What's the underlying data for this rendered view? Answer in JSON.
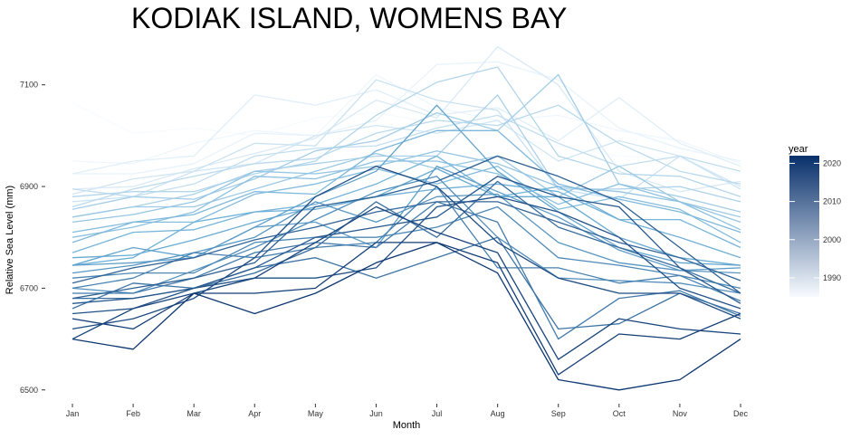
{
  "chart_data": {
    "type": "line",
    "title": "KODIAK ISLAND,  WOMENS BAY",
    "xlabel": "Month",
    "ylabel": "Relative Sea Level (mm)",
    "categories": [
      "Jan",
      "Feb",
      "Mar",
      "Apr",
      "May",
      "Jun",
      "Jul",
      "Aug",
      "Sep",
      "Oct",
      "Nov",
      "Dec"
    ],
    "ylim": [
      6480,
      7160
    ],
    "yticks": [
      6500,
      6700,
      6900,
      7100
    ],
    "grid": false,
    "legend": {
      "title": "year",
      "position": "right",
      "range": [
        1985,
        2022
      ],
      "ticks": [
        1990,
        2000,
        2010,
        2020
      ],
      "color_low": "#f7fbff",
      "color_high": "#08306b"
    },
    "series": [
      {
        "year": 1985,
        "values": [
          7065,
          7005,
          7015,
          7000,
          7035,
          7045,
          7025,
          7000,
          6980,
          6960,
          6955,
          6925
        ]
      },
      {
        "year": 1986,
        "values": [
          6950,
          6945,
          6985,
          7010,
          7000,
          7120,
          7055,
          7030,
          7040,
          7010,
          6990,
          6945
        ]
      },
      {
        "year": 1987,
        "values": [
          6925,
          6925,
          6945,
          7005,
          7000,
          7030,
          7140,
          7145,
          7110,
          7015,
          6975,
          6950
        ]
      },
      {
        "year": 1988,
        "values": [
          6925,
          6950,
          6960,
          7080,
          7060,
          7090,
          7040,
          7055,
          6990,
          7075,
          6985,
          6940
        ]
      },
      {
        "year": 1989,
        "values": [
          6895,
          6900,
          6935,
          6965,
          6995,
          7070,
          7035,
          7175,
          7100,
          6930,
          6890,
          6910
        ]
      },
      {
        "year": 1990,
        "values": [
          6885,
          6915,
          6930,
          6945,
          7000,
          7020,
          7005,
          7030,
          6950,
          6990,
          6960,
          6900
        ]
      },
      {
        "year": 1991,
        "values": [
          6870,
          6880,
          6930,
          6985,
          6980,
          7110,
          7070,
          7050,
          6895,
          6875,
          6960,
          6895
        ]
      },
      {
        "year": 1992,
        "values": [
          6895,
          6880,
          6905,
          6960,
          6975,
          6980,
          7015,
          7040,
          6985,
          6940,
          6960,
          6930
        ]
      },
      {
        "year": 1993,
        "values": [
          6860,
          6895,
          6920,
          6945,
          6955,
          7005,
          7030,
          7020,
          7060,
          6985,
          6930,
          6905
        ]
      },
      {
        "year": 1994,
        "values": [
          6880,
          6890,
          6890,
          6925,
          6950,
          7040,
          7105,
          7135,
          6960,
          6925,
          6920,
          6880
        ]
      },
      {
        "year": 1995,
        "values": [
          6840,
          6860,
          6885,
          6930,
          6945,
          6960,
          6960,
          7080,
          6895,
          6895,
          6900,
          6870
        ]
      },
      {
        "year": 1996,
        "values": [
          6855,
          6880,
          6875,
          6915,
          6970,
          6990,
          7045,
          7010,
          7120,
          6905,
          6880,
          6850
        ]
      },
      {
        "year": 1997,
        "values": [
          6840,
          6860,
          6860,
          6895,
          6930,
          6965,
          6935,
          6960,
          6880,
          6940,
          6870,
          6840
        ]
      },
      {
        "year": 1998,
        "values": [
          6830,
          6845,
          6870,
          6930,
          6925,
          6940,
          6970,
          6945,
          6900,
          6890,
          6870,
          6830
        ]
      },
      {
        "year": 1999,
        "values": [
          6800,
          6820,
          6850,
          6920,
          6915,
          6950,
          6950,
          6925,
          6865,
          6905,
          6870,
          6815
        ]
      },
      {
        "year": 2000,
        "values": [
          6810,
          6830,
          6830,
          6885,
          6905,
          6935,
          6905,
          6940,
          6855,
          6880,
          6855,
          6790
        ]
      },
      {
        "year": 2001,
        "values": [
          6790,
          6830,
          6845,
          6890,
          6885,
          6970,
          7010,
          7010,
          6905,
          6875,
          6850,
          6810
        ]
      },
      {
        "year": 2002,
        "values": [
          6770,
          6810,
          6815,
          6850,
          6865,
          6905,
          6960,
          6880,
          6900,
          6835,
          6835,
          6780
        ]
      },
      {
        "year": 2003,
        "values": [
          6745,
          6760,
          6830,
          6850,
          6855,
          6880,
          6895,
          6905,
          6890,
          6835,
          6800,
          6760
        ]
      },
      {
        "year": 2004,
        "values": [
          6760,
          6765,
          6795,
          6830,
          6860,
          6880,
          6935,
          6880,
          6880,
          6800,
          6760,
          6745
        ]
      },
      {
        "year": 2005,
        "values": [
          6745,
          6780,
          6760,
          6820,
          6880,
          6930,
          7060,
          6930,
          6850,
          6780,
          6750,
          6745
        ]
      },
      {
        "year": 2006,
        "values": [
          6745,
          6750,
          6760,
          6820,
          6830,
          6780,
          6940,
          6890,
          6840,
          6775,
          6735,
          6740
        ]
      },
      {
        "year": 2007,
        "values": [
          6730,
          6745,
          6770,
          6800,
          6870,
          6830,
          6880,
          6885,
          6790,
          6750,
          6735,
          6730
        ]
      },
      {
        "year": 2008,
        "values": [
          6700,
          6690,
          6735,
          6780,
          6835,
          6890,
          6920,
          6800,
          6720,
          6715,
          6710,
          6690
        ]
      },
      {
        "year": 2009,
        "values": [
          6720,
          6730,
          6730,
          6790,
          6800,
          6800,
          6820,
          6860,
          6760,
          6745,
          6725,
          6700
        ]
      },
      {
        "year": 2010,
        "values": [
          6700,
          6720,
          6770,
          6760,
          6780,
          6790,
          6900,
          6740,
          6740,
          6710,
          6725,
          6675
        ]
      },
      {
        "year": 2011,
        "values": [
          6690,
          6690,
          6720,
          6770,
          6790,
          6780,
          6870,
          6830,
          6600,
          6680,
          6695,
          6645
        ]
      },
      {
        "year": 2012,
        "values": [
          6660,
          6710,
          6700,
          6740,
          6760,
          6720,
          6760,
          6800,
          6620,
          6630,
          6690,
          6650
        ]
      },
      {
        "year": 2013,
        "values": [
          6680,
          6680,
          6700,
          6730,
          6780,
          6870,
          6800,
          6910,
          6820,
          6780,
          6740,
          6690
        ]
      },
      {
        "year": 2014,
        "values": [
          6710,
          6740,
          6760,
          6795,
          6820,
          6850,
          6870,
          6870,
          6830,
          6790,
          6760,
          6715
        ]
      },
      {
        "year": 2015,
        "values": [
          6680,
          6700,
          6720,
          6750,
          6860,
          6880,
          6910,
          6960,
          6920,
          6870,
          6780,
          6690
        ]
      },
      {
        "year": 2016,
        "values": [
          6670,
          6680,
          6700,
          6740,
          6800,
          6820,
          6840,
          6920,
          6880,
          6860,
          6740,
          6670
        ]
      },
      {
        "year": 2017,
        "values": [
          6650,
          6660,
          6700,
          6720,
          6720,
          6740,
          6860,
          6880,
          6850,
          6800,
          6700,
          6660
        ]
      },
      {
        "year": 2018,
        "values": [
          6620,
          6640,
          6680,
          6760,
          6880,
          6940,
          6900,
          6790,
          6720,
          6690,
          6690,
          6640
        ]
      },
      {
        "year": 2019,
        "values": [
          6600,
          6660,
          6690,
          6720,
          6790,
          6860,
          6810,
          6770,
          6560,
          6640,
          6620,
          6610
        ]
      },
      {
        "year": 2020,
        "values": [
          6640,
          6620,
          6690,
          6690,
          6700,
          6790,
          6790,
          6750,
          6530,
          6610,
          6600,
          6650
        ]
      },
      {
        "year": 2021,
        "values": [
          6600,
          6580,
          6690,
          6650,
          6690,
          6750,
          6790,
          6730,
          6520,
          6500,
          6520,
          6600
        ]
      }
    ]
  }
}
